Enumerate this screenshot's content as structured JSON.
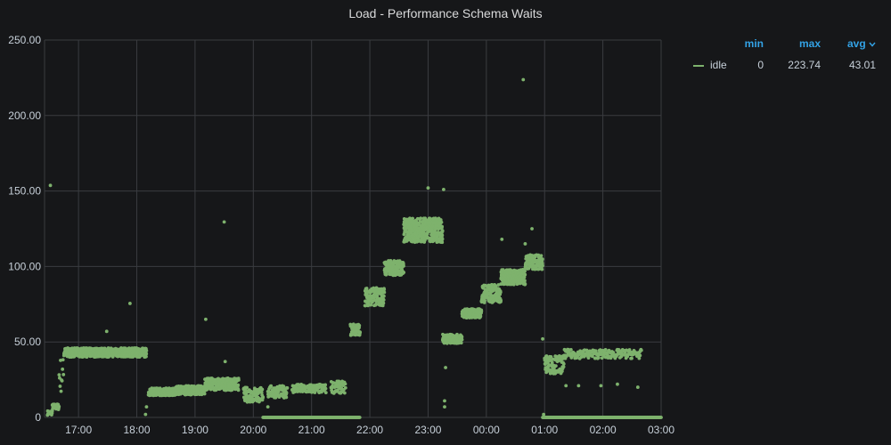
{
  "panel": {
    "title": "Load - Performance Schema Waits"
  },
  "colors": {
    "background": "#161719",
    "series": "#7eb26d",
    "grid": "#3a3c40",
    "text": "#c7d0d9",
    "legend_header": "#33a2e5"
  },
  "legend": {
    "headers": {
      "min": "min",
      "max": "max",
      "avg": "avg",
      "sort_icon": "chevron-down-icon"
    },
    "rows": [
      {
        "name": "idle",
        "min": "0",
        "max": "223.74",
        "avg": "43.01"
      }
    ]
  },
  "chart_data": {
    "type": "scatter",
    "title": "Load - Performance Schema Waits",
    "xlabel": "",
    "ylabel": "",
    "ylim": [
      0,
      250
    ],
    "yticks": [
      "0",
      "50.00",
      "100.00",
      "150.00",
      "200.00",
      "250.00"
    ],
    "xlim": [
      "16:25",
      "03:00"
    ],
    "xticks": [
      "17:00",
      "18:00",
      "19:00",
      "20:00",
      "21:00",
      "22:00",
      "23:00",
      "00:00",
      "01:00",
      "02:00",
      "03:00"
    ],
    "grid": true,
    "legend_position": "right",
    "series": [
      {
        "name": "idle",
        "segments": [
          {
            "start": "16:28",
            "end": "16:33",
            "level": 3,
            "spread": 1.5,
            "step": 0.25
          },
          {
            "start": "16:33",
            "end": "16:40",
            "level": 7,
            "spread": 2,
            "step": 0.3
          },
          {
            "start": "16:40",
            "end": "16:45",
            "level": 28,
            "spread": 12,
            "step": 0.5
          },
          {
            "start": "16:45",
            "end": "18:10",
            "level": 43,
            "spread": 3,
            "step": 0.12
          },
          {
            "start": "18:12",
            "end": "18:40",
            "level": 17,
            "spread": 2.5,
            "step": 0.15
          },
          {
            "start": "18:40",
            "end": "19:10",
            "level": 18,
            "spread": 3,
            "step": 0.15
          },
          {
            "start": "19:10",
            "end": "19:45",
            "level": 22,
            "spread": 4,
            "step": 0.15
          },
          {
            "start": "19:50",
            "end": "20:10",
            "level": 15,
            "spread": 5,
            "step": 0.2
          },
          {
            "start": "20:15",
            "end": "20:35",
            "level": 17,
            "spread": 4,
            "step": 0.25
          },
          {
            "start": "20:40",
            "end": "21:15",
            "level": 19,
            "spread": 3,
            "step": 0.3
          },
          {
            "start": "21:20",
            "end": "21:35",
            "level": 20,
            "spread": 4,
            "step": 0.3
          },
          {
            "start": "21:40",
            "end": "21:50",
            "level": 58,
            "spread": 4,
            "step": 0.2
          },
          {
            "start": "21:55",
            "end": "22:15",
            "level": 80,
            "spread": 6,
            "step": 0.15
          },
          {
            "start": "22:15",
            "end": "22:35",
            "level": 99,
            "spread": 5,
            "step": 0.15
          },
          {
            "start": "22:35",
            "end": "23:15",
            "level": 124,
            "spread": 8,
            "step": 0.1
          },
          {
            "start": "23:15",
            "end": "23:35",
            "level": 52,
            "spread": 3,
            "step": 0.15
          },
          {
            "start": "23:35",
            "end": "23:55",
            "level": 69,
            "spread": 3,
            "step": 0.15
          },
          {
            "start": "23:55",
            "end": "00:15",
            "level": 82,
            "spread": 6,
            "step": 0.15
          },
          {
            "start": "00:15",
            "end": "00:40",
            "level": 93,
            "spread": 5,
            "step": 0.12
          },
          {
            "start": "00:40",
            "end": "00:58",
            "level": 103,
            "spread": 5,
            "step": 0.15
          },
          {
            "start": "01:00",
            "end": "01:20",
            "level": 35,
            "spread": 6,
            "step": 0.2
          },
          {
            "start": "01:20",
            "end": "02:40",
            "level": 42,
            "spread": 3,
            "step": 0.45
          },
          {
            "start": "00:58",
            "end": "03:00",
            "level": 0,
            "spread": 0,
            "step": 0.4
          },
          {
            "start": "20:10",
            "end": "21:50",
            "level": 0,
            "spread": 0,
            "step": 0.6
          }
        ],
        "outliers": [
          {
            "x": "16:31",
            "y": 153.7
          },
          {
            "x": "17:29",
            "y": 57
          },
          {
            "x": "17:53",
            "y": 75.5
          },
          {
            "x": "19:11",
            "y": 65
          },
          {
            "x": "19:30",
            "y": 129.5
          },
          {
            "x": "19:31",
            "y": 37
          },
          {
            "x": "18:10",
            "y": 7
          },
          {
            "x": "18:09",
            "y": 2
          },
          {
            "x": "20:15",
            "y": 7
          },
          {
            "x": "23:00",
            "y": 152
          },
          {
            "x": "23:16",
            "y": 151
          },
          {
            "x": "23:17",
            "y": 11
          },
          {
            "x": "23:17",
            "y": 7
          },
          {
            "x": "23:18",
            "y": 33
          },
          {
            "x": "00:16",
            "y": 118
          },
          {
            "x": "00:38",
            "y": 223.74
          },
          {
            "x": "00:40",
            "y": 115
          },
          {
            "x": "00:47",
            "y": 125
          },
          {
            "x": "00:58",
            "y": 52
          },
          {
            "x": "00:59",
            "y": 2
          },
          {
            "x": "01:22",
            "y": 21
          },
          {
            "x": "01:35",
            "y": 21
          },
          {
            "x": "01:58",
            "y": 21
          },
          {
            "x": "02:15",
            "y": 22
          },
          {
            "x": "02:36",
            "y": 20
          }
        ]
      }
    ]
  }
}
